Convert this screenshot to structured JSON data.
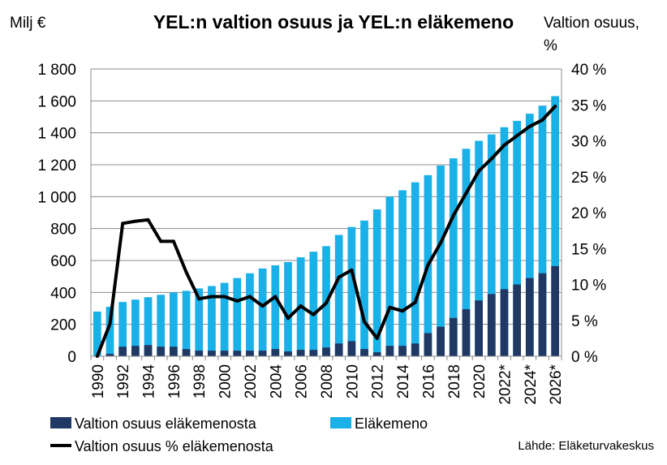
{
  "chart_data": {
    "type": "bar+line",
    "title": "YEL:n valtion osuus ja YEL:n eläkemeno",
    "ylabel_left": "Milj €",
    "ylabel_right_line1": "Valtion osuus,",
    "ylabel_right_line2": "%",
    "source": "Lähde: Eläketurvakeskus",
    "ylim_left": [
      0,
      1800
    ],
    "ylim_right": [
      0,
      40
    ],
    "left_ticks": [
      "0",
      "200",
      "400",
      "600",
      "800",
      "1 000",
      "1 200",
      "1 400",
      "1 600",
      "1 800"
    ],
    "right_ticks": [
      "0 %",
      "5 %",
      "10 %",
      "15 %",
      "20 %",
      "25 %",
      "30 %",
      "35 %",
      "40 %"
    ],
    "years": [
      1990,
      1991,
      1992,
      1993,
      1994,
      1995,
      1996,
      1997,
      1998,
      1999,
      2000,
      2001,
      2002,
      2003,
      2004,
      2005,
      2006,
      2007,
      2008,
      2009,
      2010,
      2011,
      2012,
      2013,
      2014,
      2015,
      2016,
      2017,
      2018,
      2019,
      2020,
      2021,
      2022,
      2023,
      2024,
      2025,
      2026
    ],
    "x_tick_labels": [
      "1990",
      "1992",
      "1994",
      "1996",
      "1998",
      "2000",
      "2002",
      "2004",
      "2006",
      "2008",
      "2010",
      "2012",
      "2014",
      "2016",
      "2018",
      "2020",
      "2022*",
      "2024*",
      "2026*"
    ],
    "legend_position": "bottom",
    "grid": "horizontal",
    "series": [
      {
        "name": "Eläkemeno",
        "kind": "bar",
        "color": "#1ab0e8",
        "values": [
          280,
          310,
          340,
          355,
          370,
          385,
          400,
          410,
          425,
          440,
          460,
          490,
          520,
          550,
          570,
          590,
          620,
          655,
          690,
          760,
          810,
          850,
          920,
          1000,
          1040,
          1090,
          1135,
          1195,
          1240,
          1300,
          1350,
          1390,
          1435,
          1475,
          1520,
          1570,
          1630
        ]
      },
      {
        "name": "Valtion osuus eläkemenosta",
        "kind": "bar",
        "color": "#1f3864",
        "values": [
          0,
          15,
          60,
          65,
          70,
          60,
          60,
          45,
          35,
          35,
          35,
          35,
          35,
          35,
          45,
          30,
          40,
          40,
          55,
          80,
          95,
          45,
          25,
          65,
          65,
          80,
          145,
          185,
          240,
          295,
          350,
          390,
          420,
          450,
          490,
          520,
          565
        ]
      },
      {
        "name": "Valtion osuus % eläkemenosta",
        "kind": "line",
        "axis": "right",
        "color": "#000000",
        "values": [
          0,
          4.5,
          18.5,
          18.8,
          19.0,
          16.0,
          16.0,
          11.7,
          8.0,
          8.3,
          8.3,
          7.7,
          8.3,
          7.0,
          8.3,
          5.3,
          7.0,
          5.8,
          7.4,
          11.0,
          12.0,
          4.8,
          2.5,
          6.8,
          6.3,
          7.5,
          12.7,
          15.8,
          19.6,
          22.7,
          25.8,
          27.5,
          29.4,
          30.7,
          32.0,
          32.9,
          34.8
        ]
      }
    ]
  }
}
